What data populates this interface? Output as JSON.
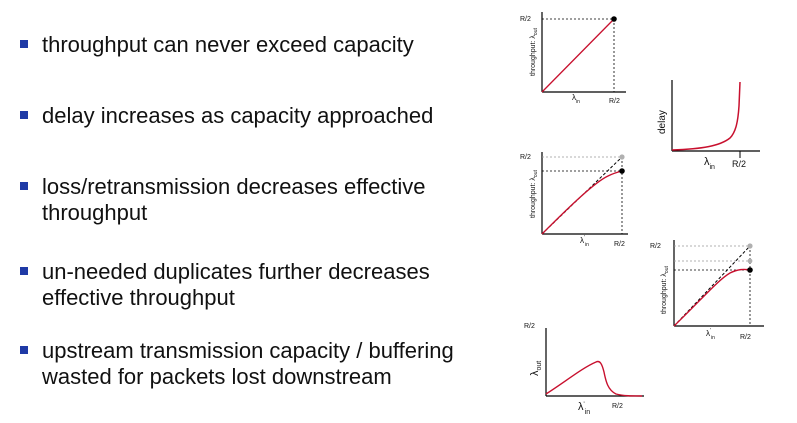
{
  "bullets": [
    {
      "lines": [
        "throughput can never exceed capacity"
      ]
    },
    {
      "lines": [
        "delay increases as capacity approached"
      ]
    },
    {
      "lines": [
        "loss/retransmission decreases effective",
        "throughput"
      ]
    },
    {
      "lines": [
        "un-needed duplicates further decreases",
        "effective throughput"
      ]
    },
    {
      "lines": [
        "upstream transmission capacity / buffering",
        "wasted for packets lost downstream"
      ]
    }
  ],
  "colors": {
    "bullet": "#1f3aa6",
    "curve": "#c8102e",
    "ideal_point": "#b0b0b0",
    "actual_point": "#000000"
  },
  "graphs": {
    "throughput_ideal": {
      "y_tick": "R/2",
      "x_tick": "R/2",
      "y_label": "throughput:",
      "y_symbol": "λ",
      "y_sub": "out",
      "x_symbol": "λ",
      "x_sub": "in"
    },
    "delay": {
      "y_label": "delay",
      "x_tick": "R/2",
      "x_symbol": "λ",
      "x_sub": "in"
    },
    "loss": {
      "y_tick": "R/2",
      "x_tick": "R/2",
      "y_label": "throughput:",
      "y_symbol": "λ",
      "y_sub": "out",
      "x_symbol": "λ",
      "x_sub": "in",
      "x_prime": "'"
    },
    "duplicates": {
      "y_tick": "R/2",
      "x_tick": "R/2",
      "y_label": "throughput:",
      "y_symbol": "λ",
      "y_sub": "out",
      "x_symbol": "λ",
      "x_sub": "in",
      "x_prime": "'"
    },
    "collapse": {
      "y_tick": "R/2",
      "x_tick": "R/2",
      "y_symbol": "λ",
      "y_sub": "out",
      "x_symbol": "λ",
      "x_sub": "in",
      "x_prime": "'"
    }
  }
}
